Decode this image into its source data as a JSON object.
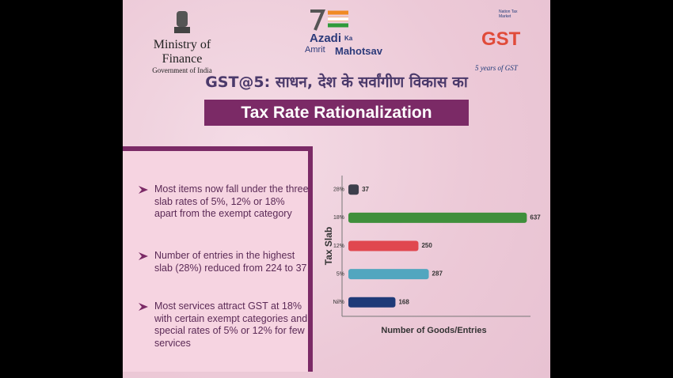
{
  "header": {
    "ministry": [
      "Ministry of Finance",
      "Government of India"
    ],
    "azadi": [
      "Azadi",
      "Ka",
      "Amrit",
      "Mahotsav"
    ],
    "gst": [
      "Nation Tax Market",
      "GST",
      "5 years of GST"
    ],
    "subtitle": "GST@5: साधन, देश के सर्वांगीण विकास का",
    "title": "Tax Rate Rationalization"
  },
  "bullets": [
    "Most items now fall under the three slab rates of 5%, 12% or 18% apart from the exempt category",
    "Number of entries in the highest slab (28%) reduced from 224 to 37",
    "Most services attract GST at 18% with certain exempt categories and special rates of 5% or 12% for few services"
  ],
  "chart_data": {
    "type": "bar",
    "orientation": "horizontal",
    "x_label": "Number of Goods/Entries",
    "y_label": "Tax Slab",
    "categories": [
      "28%",
      "18%",
      "12%",
      "5%",
      "Nil%"
    ],
    "values": [
      37,
      637,
      250,
      287,
      168
    ],
    "colors": [
      "#3d3f4c",
      "#3f8f3b",
      "#e0474f",
      "#52a6bf",
      "#1f3a78"
    ],
    "xlim": [
      0,
      650
    ],
    "data_labels": true
  }
}
